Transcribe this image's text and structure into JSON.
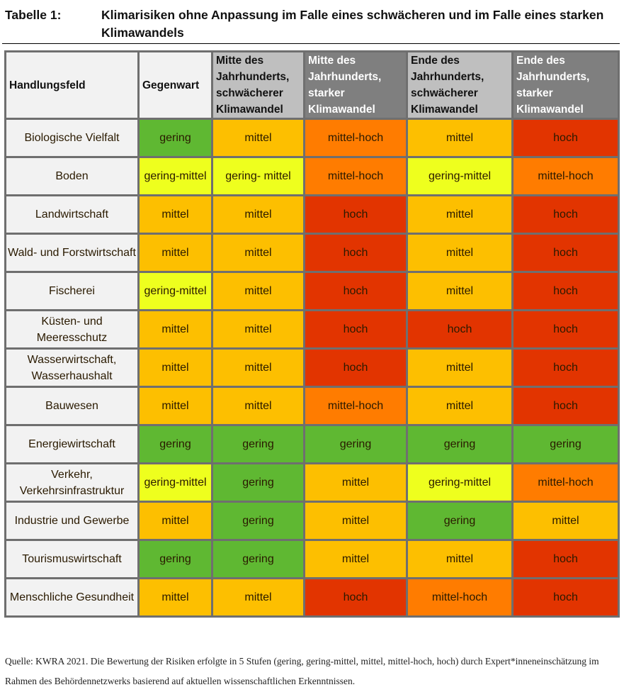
{
  "title": {
    "label": "Tabelle 1:",
    "text": "Klimarisiken ohne Anpassung im Falle eines schwächeren und im Falle eines starken Klimawandels"
  },
  "table": {
    "headers": [
      "Handlungsfeld",
      "Gegenwart",
      "Mitte des Jahrhunderts, schwächerer Klimawandel",
      "Mitte des Jahrhunderts, starker Klimawandel",
      "Ende des Jahrhunderts, schwächerer Klimawandel",
      "Ende des Jahrhunderts, starker Klimawandel"
    ],
    "rows": [
      {
        "field": "Biologische Vielfalt",
        "cells": [
          "gering",
          "mittel",
          "mittel-hoch",
          "mittel",
          "hoch"
        ],
        "levels": [
          "gering",
          "mittel",
          "mittel-hoch",
          "mittel",
          "hoch"
        ]
      },
      {
        "field": "Boden",
        "cells": [
          "gering-mittel",
          "gering- mittel",
          "mittel-hoch",
          "gering-mittel",
          "mittel-hoch"
        ],
        "levels": [
          "gering-mittel",
          "gering-mittel",
          "mittel-hoch",
          "gering-mittel",
          "mittel-hoch"
        ]
      },
      {
        "field": "Landwirtschaft",
        "cells": [
          "mittel",
          "mittel",
          "hoch",
          "mittel",
          "hoch"
        ],
        "levels": [
          "mittel",
          "mittel",
          "hoch",
          "mittel",
          "hoch"
        ]
      },
      {
        "field": "Wald- und Forstwirtschaft",
        "cells": [
          "mittel",
          "mittel",
          "hoch",
          "mittel",
          "hoch"
        ],
        "levels": [
          "mittel",
          "mittel",
          "hoch",
          "mittel",
          "hoch"
        ]
      },
      {
        "field": "Fischerei",
        "cells": [
          "gering-mittel",
          "mittel",
          "hoch",
          "mittel",
          "hoch"
        ],
        "levels": [
          "gering-mittel",
          "mittel",
          "hoch",
          "mittel",
          "hoch"
        ]
      },
      {
        "field": "Küsten- und Meeresschutz",
        "cells": [
          "mittel",
          "mittel",
          "hoch",
          "hoch",
          "hoch"
        ],
        "levels": [
          "mittel",
          "mittel",
          "hoch",
          "hoch",
          "hoch"
        ]
      },
      {
        "field": "Wasserwirtschaft, Wasserhaushalt",
        "cells": [
          "mittel",
          "mittel",
          "hoch",
          "mittel",
          "hoch"
        ],
        "levels": [
          "mittel",
          "mittel",
          "hoch",
          "mittel",
          "hoch"
        ]
      },
      {
        "field": "Bauwesen",
        "cells": [
          "mittel",
          "mittel",
          "mittel-hoch",
          "mittel",
          "hoch"
        ],
        "levels": [
          "mittel",
          "mittel",
          "mittel-hoch",
          "mittel",
          "hoch"
        ]
      },
      {
        "field": "Energiewirtschaft",
        "cells": [
          "gering",
          "gering",
          "gering",
          "gering",
          "gering"
        ],
        "levels": [
          "gering",
          "gering",
          "gering",
          "gering",
          "gering"
        ]
      },
      {
        "field": "Verkehr, Verkehrsinfrastruktur",
        "cells": [
          "gering-mittel",
          "gering",
          "mittel",
          "gering-mittel",
          "mittel-hoch"
        ],
        "levels": [
          "gering-mittel",
          "gering",
          "mittel",
          "gering-mittel",
          "mittel-hoch"
        ]
      },
      {
        "field": "Industrie und Gewerbe",
        "cells": [
          "mittel",
          "gering",
          "mittel",
          "gering",
          "mittel"
        ],
        "levels": [
          "mittel",
          "gering",
          "mittel",
          "gering",
          "mittel"
        ]
      },
      {
        "field": "Tourismuswirtschaft",
        "cells": [
          "gering",
          "gering",
          "mittel",
          "mittel",
          "hoch"
        ],
        "levels": [
          "gering",
          "gering",
          "mittel",
          "mittel",
          "hoch"
        ]
      },
      {
        "field": "Menschliche Gesundheit",
        "cells": [
          "mittel",
          "mittel",
          "hoch",
          "mittel-hoch",
          "hoch"
        ],
        "levels": [
          "mittel",
          "mittel",
          "hoch",
          "mittel-hoch",
          "hoch"
        ]
      }
    ]
  },
  "level_colors": {
    "gering": "#5fb832",
    "gering-mittel": "#eeff1e",
    "mittel": "#fdbf00",
    "mittel-hoch": "#ff7c00",
    "hoch": "#e23400"
  },
  "source": "Quelle: KWRA 2021. Die Bewertung der Risiken erfolgte in 5 Stufen (gering, gering-mittel, mittel, mittel-hoch, hoch) durch Expert*inneneinschätzung im Rahmen des Behördennetzwerks basierend auf aktuellen wissenschaftlichen Erkenntnissen."
}
